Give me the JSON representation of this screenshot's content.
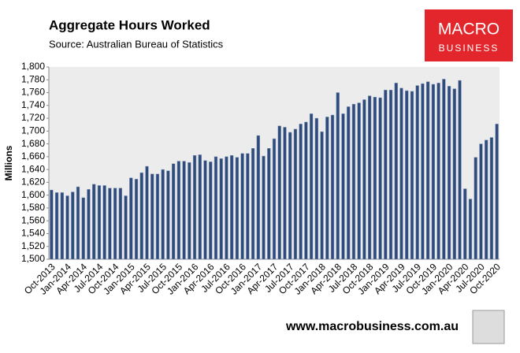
{
  "chart_data": {
    "type": "bar",
    "title": "Aggregate Hours Worked",
    "subtitle": "Source: Australian Bureau of Statistics",
    "y_label": "Millions",
    "categories": [
      "Oct-2013",
      null,
      null,
      "Jan-2014",
      null,
      null,
      "Apr-2014",
      null,
      null,
      "Jul-2014",
      null,
      null,
      "Oct-2014",
      null,
      null,
      "Jan-2015",
      null,
      null,
      "Apr-2015",
      null,
      null,
      "Jul-2015",
      null,
      null,
      "Oct-2015",
      null,
      null,
      "Jan-2016",
      null,
      null,
      "Apr-2016",
      null,
      null,
      "Jul-2016",
      null,
      null,
      "Oct-2016",
      null,
      null,
      "Jan-2017",
      null,
      null,
      "Apr-2017",
      null,
      null,
      "Jul-2017",
      null,
      null,
      "Oct-2017",
      null,
      null,
      "Jan-2018",
      null,
      null,
      "Apr-2018",
      null,
      null,
      "Jul-2018",
      null,
      null,
      "Oct-2018",
      null,
      null,
      "Jan-2019",
      null,
      null,
      "Apr-2019",
      null,
      null,
      "Jul-2019",
      null,
      null,
      "Oct-2019",
      null,
      null,
      "Jan-2020",
      null,
      null,
      "Apr-2020",
      null,
      null,
      "Jul-2020",
      null,
      null,
      "Oct-2020"
    ],
    "values": [
      1608,
      1604,
      1604,
      1599,
      1605,
      1613,
      1596,
      1609,
      1617,
      1615,
      1615,
      1611,
      1611,
      1611,
      1599,
      1627,
      1625,
      1635,
      1645,
      1633,
      1633,
      1640,
      1638,
      1649,
      1653,
      1653,
      1651,
      1662,
      1663,
      1654,
      1652,
      1660,
      1657,
      1660,
      1662,
      1659,
      1665,
      1665,
      1673,
      1693,
      1661,
      1673,
      1688,
      1708,
      1706,
      1698,
      1703,
      1711,
      1714,
      1727,
      1720,
      1699,
      1722,
      1725,
      1760,
      1727,
      1738,
      1742,
      1744,
      1749,
      1755,
      1753,
      1752,
      1764,
      1764,
      1775,
      1767,
      1763,
      1762,
      1771,
      1774,
      1777,
      1773,
      1775,
      1781,
      1770,
      1766,
      1779,
      1610,
      1594,
      1659,
      1680,
      1686,
      1690,
      1711
    ],
    "color": "#2f4b7c",
    "ylim": [
      1500,
      1800
    ],
    "yticks": [
      {
        "value": 1500,
        "label": "1,500"
      },
      {
        "value": 1520,
        "label": "1,520"
      },
      {
        "value": 1540,
        "label": "1,540"
      },
      {
        "value": 1560,
        "label": "1,560"
      },
      {
        "value": 1580,
        "label": "1,580"
      },
      {
        "value": 1600,
        "label": "1,600"
      },
      {
        "value": 1620,
        "label": "1,620"
      },
      {
        "value": 1640,
        "label": "1,640"
      },
      {
        "value": 1660,
        "label": "1,660"
      },
      {
        "value": 1680,
        "label": "1,680"
      },
      {
        "value": 1700,
        "label": "1,700"
      },
      {
        "value": 1720,
        "label": "1,720"
      },
      {
        "value": 1740,
        "label": "1,740"
      },
      {
        "value": 1760,
        "label": "1,760"
      },
      {
        "value": 1780,
        "label": "1,780"
      },
      {
        "value": 1800,
        "label": "1,800"
      }
    ],
    "grid": false
  },
  "logo": {
    "line1": "MACRO",
    "line2": "BUSINESS"
  },
  "footer": "www.macrobusiness.com.au"
}
